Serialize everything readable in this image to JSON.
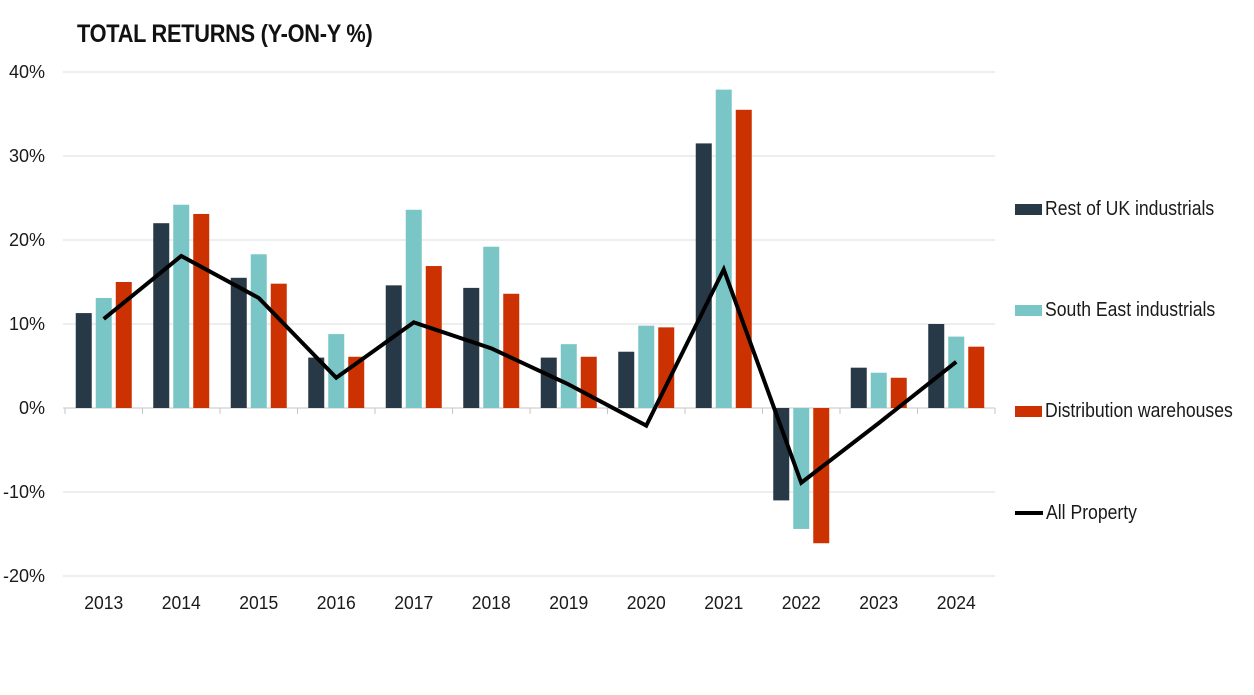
{
  "title": "TOTAL RETURNS (Y-ON-Y %)",
  "chart_data": {
    "type": "bar",
    "subtype": "grouped-bars-with-line-overlay",
    "title": "TOTAL RETURNS (Y-ON-Y %)",
    "categories": [
      "2013",
      "2014",
      "2015",
      "2016",
      "2017",
      "2018",
      "2019",
      "2020",
      "2021",
      "2022",
      "2023",
      "2024"
    ],
    "series": [
      {
        "name": "Rest of UK industrials",
        "type": "bar",
        "color": "#273847",
        "values": [
          11.3,
          22.0,
          15.5,
          6.0,
          14.6,
          14.3,
          6.0,
          6.7,
          31.5,
          -11.0,
          4.8,
          10.0
        ]
      },
      {
        "name": "South East industrials",
        "type": "bar",
        "color": "#7ac6c7",
        "values": [
          13.1,
          24.2,
          18.3,
          8.8,
          23.6,
          19.2,
          7.6,
          9.8,
          37.9,
          -14.4,
          4.2,
          8.5
        ]
      },
      {
        "name": "Distribution warehouses",
        "type": "bar",
        "color": "#cc3201",
        "values": [
          15.0,
          23.1,
          14.8,
          6.1,
          16.9,
          13.6,
          6.1,
          9.6,
          35.5,
          -16.1,
          3.6,
          7.3
        ]
      },
      {
        "name": "All Property",
        "type": "line",
        "color": "#000000",
        "values": [
          10.6,
          18.1,
          13.1,
          3.6,
          10.2,
          7.1,
          2.8,
          -2.1,
          16.5,
          -8.9,
          -1.8,
          5.5
        ]
      }
    ],
    "xlabel": "",
    "ylabel": "",
    "ylim": [
      -20,
      40
    ],
    "y_ticks": [
      {
        "value": 40,
        "label": "40%"
      },
      {
        "value": 30,
        "label": "30%"
      },
      {
        "value": 20,
        "label": "20%"
      },
      {
        "value": 10,
        "label": "10%"
      },
      {
        "value": 0,
        "label": "0%"
      },
      {
        "value": -10,
        "label": "-10%"
      },
      {
        "value": -20,
        "label": "-20%"
      }
    ],
    "grid": true,
    "legend_position": "right",
    "colors": {
      "gridline": "#dcdcdc",
      "zero_axis": "#c6c6c6",
      "tick_text": "#1a1a1a",
      "line_series": "#000000"
    }
  }
}
